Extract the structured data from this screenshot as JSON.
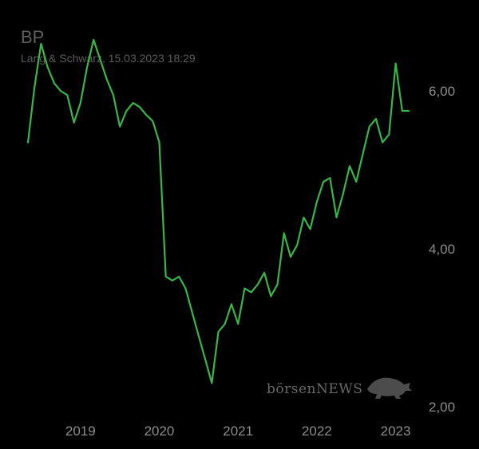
{
  "header": {
    "title": "BP",
    "subtitle": "Lang & Schwarz, 15.03.2023 18:29"
  },
  "watermark": {
    "text": "börsenNEWS"
  },
  "colors": {
    "background": "#000000",
    "line": "#3ab54a",
    "text": "#8c8c8c"
  },
  "chart_data": {
    "type": "line",
    "title": "BP",
    "xlabel": "",
    "ylabel": "",
    "y_axis_position": "right",
    "grid": false,
    "legend": "none",
    "x_ticks": [
      "2019",
      "2020",
      "2021",
      "2022",
      "2023"
    ],
    "y_ticks": [
      "2,00",
      "4,00",
      "6,00"
    ],
    "ylim": [
      1.9,
      6.75
    ],
    "x_range": [
      "2018-05",
      "2023-03"
    ],
    "series": [
      {
        "x": [
          "2018-05",
          "2018-06",
          "2018-07",
          "2018-08",
          "2018-09",
          "2018-10",
          "2018-11",
          "2018-12",
          "2019-01",
          "2019-02",
          "2019-03",
          "2019-04",
          "2019-05",
          "2019-06",
          "2019-07",
          "2019-08",
          "2019-09",
          "2019-10",
          "2019-11",
          "2019-12",
          "2020-01",
          "2020-02",
          "2020-03",
          "2020-04",
          "2020-05",
          "2020-06",
          "2020-07",
          "2020-08",
          "2020-09",
          "2020-10",
          "2020-11",
          "2020-12",
          "2021-01",
          "2021-02",
          "2021-03",
          "2021-04",
          "2021-05",
          "2021-06",
          "2021-07",
          "2021-08",
          "2021-09",
          "2021-10",
          "2021-11",
          "2021-12",
          "2022-01",
          "2022-02",
          "2022-03",
          "2022-04",
          "2022-05",
          "2022-06",
          "2022-07",
          "2022-08",
          "2022-09",
          "2022-10",
          "2022-11",
          "2022-12",
          "2023-01",
          "2023-02",
          "2023-03"
        ],
        "values": [
          5.35,
          6.05,
          6.6,
          6.3,
          6.1,
          6.0,
          5.95,
          5.6,
          5.85,
          6.3,
          6.65,
          6.4,
          6.15,
          5.95,
          5.55,
          5.75,
          5.85,
          5.8,
          5.7,
          5.62,
          5.35,
          3.65,
          3.6,
          3.65,
          3.5,
          3.2,
          2.9,
          2.6,
          2.3,
          2.95,
          3.05,
          3.3,
          3.05,
          3.5,
          3.45,
          3.55,
          3.7,
          3.4,
          3.55,
          4.2,
          3.9,
          4.05,
          4.4,
          4.25,
          4.6,
          4.85,
          4.9,
          4.4,
          4.7,
          5.05,
          4.85,
          5.2,
          5.55,
          5.65,
          5.35,
          5.45,
          6.35,
          5.75,
          5.75
        ]
      }
    ]
  }
}
